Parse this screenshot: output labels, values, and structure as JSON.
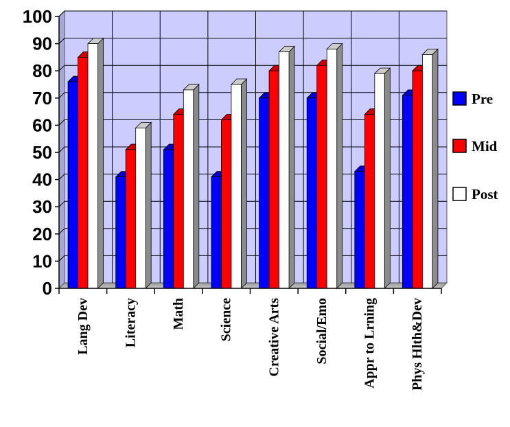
{
  "chart_data": {
    "type": "bar",
    "categories": [
      "Lang Dev",
      "Literacy",
      "Math",
      "Science",
      "Creative Arts",
      "Social/Emo",
      "Appr to Lrning",
      "Phys Hlth&Dev"
    ],
    "series": [
      {
        "name": "Pre",
        "color": "#0000ff",
        "values": [
          76,
          41,
          51,
          41,
          70,
          70,
          43,
          71
        ]
      },
      {
        "name": "Mid",
        "color": "#ff0000",
        "values": [
          85,
          51,
          64,
          62,
          80,
          82,
          64,
          80
        ]
      },
      {
        "name": "Post",
        "color": "#ffffff",
        "values": [
          90,
          59,
          73,
          75,
          87,
          88,
          79,
          86
        ]
      }
    ],
    "ylim": [
      0,
      100
    ],
    "yticks": [
      0,
      10,
      20,
      30,
      40,
      50,
      60,
      70,
      80,
      90,
      100
    ],
    "grid": true,
    "background_color": "#ccccff",
    "legend_position": "right",
    "style": "3d-clustered-bar"
  }
}
